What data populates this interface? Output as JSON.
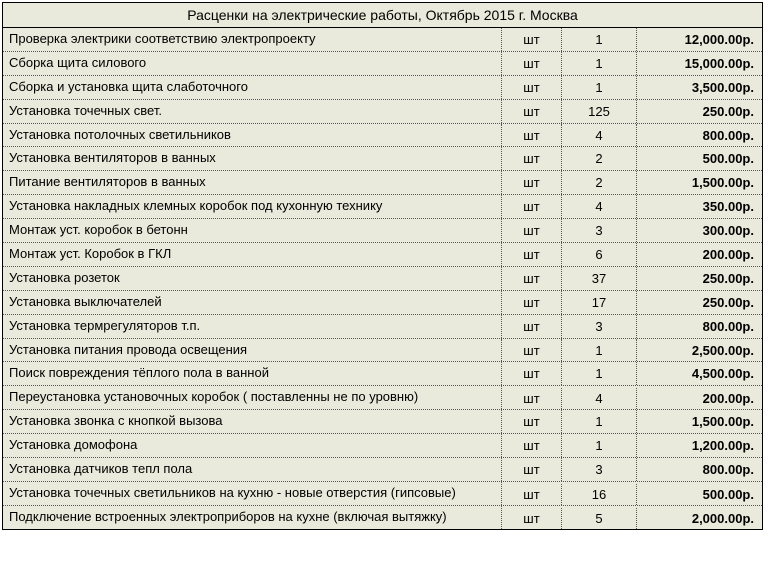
{
  "title": "Расценки на электрические работы, Октябрь 2015 г. Москва",
  "unit_label": "шт",
  "currency_suffix": "р.",
  "table": {
    "columns": [
      "name",
      "unit",
      "qty",
      "price"
    ],
    "background_color": "#e9eadb",
    "border_color": "#000000",
    "dotted_color": "#555555",
    "font_size": 13,
    "title_font_size": 14,
    "price_font_weight": "bold"
  },
  "rows": [
    {
      "name": "Проверка электрики соответствию электропроекту",
      "unit": "шт",
      "qty": "1",
      "price": "12,000.00р.",
      "multiline": false
    },
    {
      "name": "Сборка щита силового",
      "unit": "шт",
      "qty": "1",
      "price": "15,000.00р.",
      "multiline": false
    },
    {
      "name": "Сборка и установка щита слаботочного",
      "unit": "шт",
      "qty": "1",
      "price": "3,500.00р.",
      "multiline": false
    },
    {
      "name": "Установка точечных свет.",
      "unit": "шт",
      "qty": "125",
      "price": "250.00р.",
      "multiline": false
    },
    {
      "name": "Установка потолочных светильников",
      "unit": "шт",
      "qty": "4",
      "price": "800.00р.",
      "multiline": false
    },
    {
      "name": "Установка вентиляторов в ванных",
      "unit": "шт",
      "qty": "2",
      "price": "500.00р.",
      "multiline": false
    },
    {
      "name": "Питание вентиляторов в ванных",
      "unit": "шт",
      "qty": "2",
      "price": "1,500.00р.",
      "multiline": false
    },
    {
      "name": "Установка  накладных клемных коробок под кухонную технику",
      "unit": "шт",
      "qty": "4",
      "price": "350.00р.",
      "multiline": false
    },
    {
      "name": "Монтаж уст. коробок в бетонн",
      "unit": "шт",
      "qty": "3",
      "price": "300.00р.",
      "multiline": false
    },
    {
      "name": "Монтаж уст. Коробок в ГКЛ",
      "unit": "шт",
      "qty": "6",
      "price": "200.00р.",
      "multiline": false
    },
    {
      "name": "Установка розеток",
      "unit": "шт",
      "qty": "37",
      "price": "250.00р.",
      "multiline": false
    },
    {
      "name": "Установка выключателей",
      "unit": "шт",
      "qty": "17",
      "price": "250.00р.",
      "multiline": false
    },
    {
      "name": "Установка термрегуляторов т.п.",
      "unit": "шт",
      "qty": "3",
      "price": "800.00р.",
      "multiline": false
    },
    {
      "name": "Установка питания провода освещения",
      "unit": "шт",
      "qty": "1",
      "price": "2,500.00р.",
      "multiline": false
    },
    {
      "name": "Поиск повреждения тёплого пола в ванной",
      "unit": "шт",
      "qty": "1",
      "price": "4,500.00р.",
      "multiline": false
    },
    {
      "name": "Переустановка установочных коробок ( поставленны не по уровню)",
      "unit": "шт",
      "qty": "4",
      "price": "200.00р.",
      "multiline": true
    },
    {
      "name": "Установка звонка с кнопкой вызова",
      "unit": "шт",
      "qty": "1",
      "price": "1,500.00р.",
      "multiline": false
    },
    {
      "name": "Установка  домофона",
      "unit": "шт",
      "qty": "1",
      "price": "1,200.00р.",
      "multiline": false
    },
    {
      "name": "Установка датчиков тепл пола",
      "unit": "шт",
      "qty": "3",
      "price": "800.00р.",
      "multiline": false
    },
    {
      "name": "Установка точечных светильников на кухню - новые отверстия (гипсовые)",
      "unit": "шт",
      "qty": "16",
      "price": "500.00р.",
      "multiline": true
    },
    {
      "name": "Подключение встроенных электроприборов на кухне (включая вытяжку)",
      "unit": "шт",
      "qty": "5",
      "price": "2,000.00р.",
      "multiline": true
    }
  ]
}
